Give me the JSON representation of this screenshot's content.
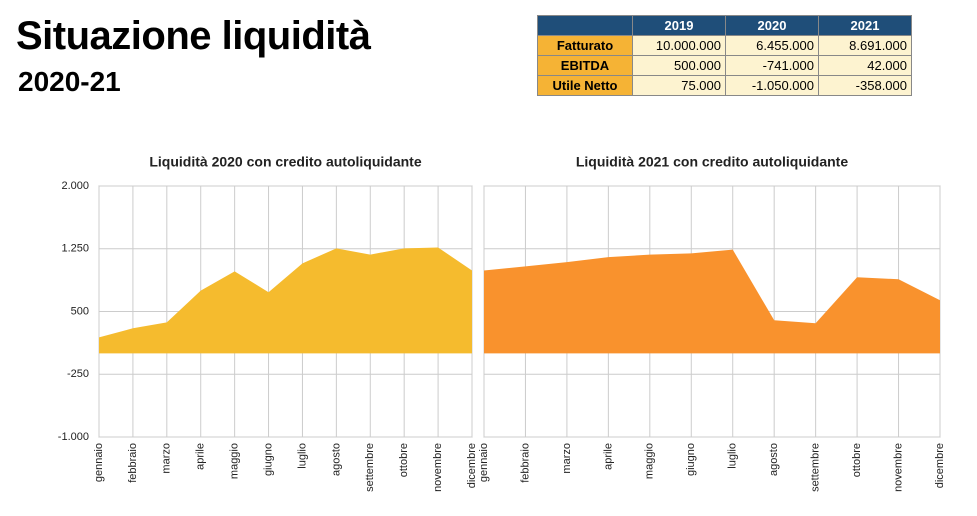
{
  "header": {
    "title": "Situazione liquidità",
    "subtitle": "2020-21"
  },
  "table": {
    "columns": [
      "2019",
      "2020",
      "2021"
    ],
    "rows": [
      {
        "label": "Fatturato",
        "values": [
          "10.000.000",
          "6.455.000",
          "8.691.000"
        ]
      },
      {
        "label": "EBITDA",
        "values": [
          "500.000",
          "-741.000",
          "42.000"
        ]
      },
      {
        "label": "Utile Netto",
        "values": [
          "75.000",
          "-1.050.000",
          "-358.000"
        ]
      }
    ]
  },
  "chart_data": [
    {
      "type": "area",
      "title": "Liquidità 2020 con credito autoliquidante",
      "categories": [
        "gennaio",
        "febbraio",
        "marzo",
        "aprile",
        "maggio",
        "giugno",
        "luglio",
        "agosto",
        "settembre",
        "ottobre",
        "novembre",
        "dicembre"
      ],
      "values": [
        190,
        300,
        370,
        750,
        980,
        730,
        1075,
        1255,
        1180,
        1255,
        1265,
        990
      ],
      "color": "#f5bb2e",
      "ylim": [
        -1000,
        2000
      ],
      "yticks": [
        {
          "value": 2000,
          "label": "2.000"
        },
        {
          "value": 1250,
          "label": "1.250"
        },
        500,
        -250,
        {
          "value": -1000,
          "label": "-1.000"
        }
      ],
      "grid": true
    },
    {
      "type": "area",
      "title": "Liquidità 2021 con credito autoliquidante",
      "categories": [
        "gennaio",
        "febbraio",
        "marzo",
        "aprile",
        "maggio",
        "giugno",
        "luglio",
        "agosto",
        "settembre",
        "ottobre",
        "novembre",
        "dicembre"
      ],
      "values": [
        990,
        1040,
        1090,
        1150,
        1180,
        1195,
        1240,
        395,
        360,
        910,
        885,
        635
      ],
      "color": "#f9922d",
      "ylim": [
        -1000,
        2000
      ],
      "grid": true
    }
  ]
}
